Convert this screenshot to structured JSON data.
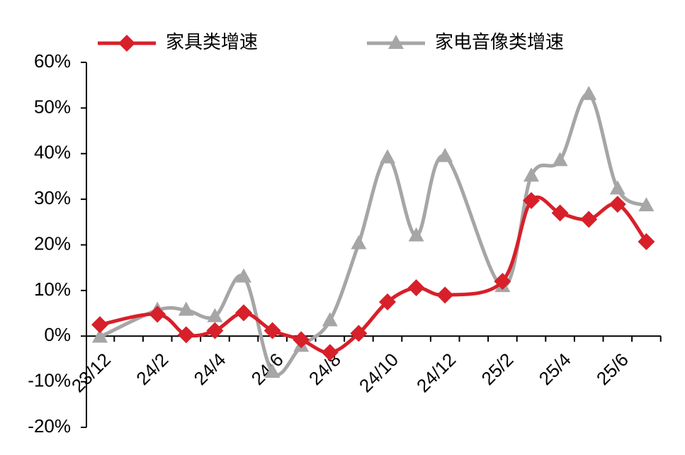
{
  "chart_data": {
    "type": "line",
    "categories": [
      "23/12",
      null,
      "24/2",
      null,
      "24/4",
      null,
      "24/6",
      null,
      "24/8",
      null,
      "24/10",
      null,
      "24/12",
      null,
      "25/2",
      null,
      "25/4",
      null,
      "25/6",
      null
    ],
    "series": [
      {
        "name": "家具类增速",
        "color": "#d7202a",
        "marker": "diamond",
        "values": [
          2.5,
          null,
          4.8,
          0.3,
          1.2,
          5.1,
          1.2,
          -0.8,
          -3.6,
          0.6,
          7.5,
          10.6,
          9.0,
          null,
          12.0,
          29.7,
          27.0,
          25.6,
          28.9,
          20.7
        ]
      },
      {
        "name": "家电音像类增速",
        "color": "#a6a6a6",
        "marker": "triangle",
        "values": [
          -0.2,
          null,
          5.7,
          5.7,
          4.3,
          13.0,
          -7.9,
          -2.2,
          3.4,
          20.3,
          39.1,
          22.0,
          39.4,
          null,
          10.9,
          35.1,
          38.5,
          53.0,
          32.3,
          28.6
        ]
      }
    ],
    "connect_gaps": true,
    "smooth": true,
    "legend": "top",
    "ylim": [
      -20,
      60
    ],
    "yticks": [
      {
        "value": -20,
        "label": "-20%"
      },
      {
        "value": -10,
        "label": "-10%"
      },
      {
        "value": 0,
        "label": "0%"
      },
      {
        "value": 10,
        "label": "10%"
      },
      {
        "value": 20,
        "label": "20%"
      },
      {
        "value": 30,
        "label": "30%"
      },
      {
        "value": 40,
        "label": "40%"
      },
      {
        "value": 50,
        "label": "50%"
      },
      {
        "value": 60,
        "label": "60%"
      }
    ]
  }
}
